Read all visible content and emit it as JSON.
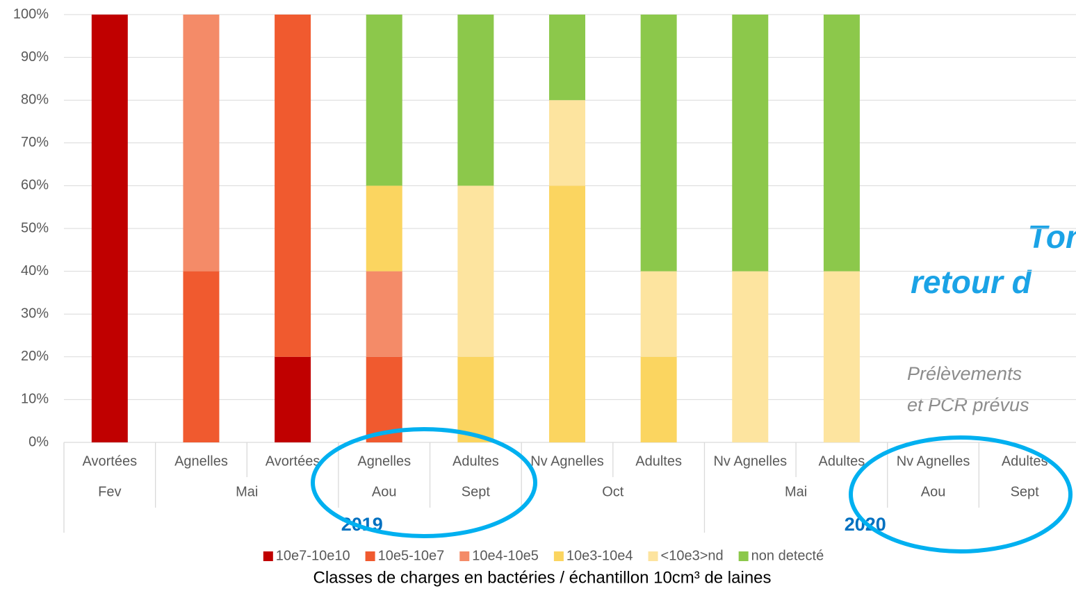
{
  "chart_data": {
    "type": "stacked_bar",
    "categories": [
      "Avortées",
      "Agnelles",
      "Avortées",
      "Agnelles",
      "Adultes",
      "Nv Agnelles",
      "Adultes",
      "Nv Agnelles",
      "Adultes",
      "Nv Agnelles",
      "Adultes"
    ],
    "category_groups": [
      [
        "Fev",
        "Mai",
        null,
        "Aou",
        "Sept",
        "Oct",
        null,
        "Mai",
        null,
        "Aou",
        "Sept"
      ],
      [
        "2019",
        null,
        null,
        null,
        null,
        null,
        null,
        "2020",
        null,
        null,
        null
      ]
    ],
    "series": [
      {
        "name": "10e7-10e10",
        "color": "#c00000",
        "values": [
          100,
          0,
          20,
          0,
          0,
          0,
          0,
          0,
          0,
          null,
          null
        ]
      },
      {
        "name": "10e5-10e7",
        "color": "#f05a2f",
        "values": [
          0,
          40,
          80,
          20,
          0,
          0,
          0,
          0,
          0,
          null,
          null
        ]
      },
      {
        "name": "10e4-10e5",
        "color": "#f48b68",
        "values": [
          0,
          60,
          0,
          20,
          0,
          0,
          0,
          0,
          0,
          null,
          null
        ]
      },
      {
        "name": "10e3-10e4",
        "color": "#fbd560",
        "values": [
          0,
          0,
          0,
          20,
          20,
          60,
          20,
          0,
          0,
          null,
          null
        ]
      },
      {
        "name": "<10e3>nd",
        "color": "#fde49f",
        "values": [
          0,
          0,
          0,
          0,
          40,
          20,
          20,
          40,
          40,
          null,
          null
        ]
      },
      {
        "name": "non detecté",
        "color": "#8cc84b",
        "values": [
          0,
          0,
          0,
          40,
          40,
          20,
          60,
          60,
          60,
          null,
          null
        ]
      }
    ],
    "xlabel": "Classes de charges en bactéries / échantillon 10cm³ de laines",
    "ylim": [
      0,
      100
    ],
    "yticks": [
      {
        "value": 0,
        "label": "0%"
      },
      {
        "value": 10,
        "label": "10%"
      },
      {
        "value": 20,
        "label": "20%"
      },
      {
        "value": 30,
        "label": "30%"
      },
      {
        "value": 40,
        "label": "40%"
      },
      {
        "value": 50,
        "label": "50%"
      },
      {
        "value": 60,
        "label": "60%"
      },
      {
        "value": 70,
        "label": "70%"
      },
      {
        "value": 80,
        "label": "80%"
      },
      {
        "value": 90,
        "label": "90%"
      },
      {
        "value": 100,
        "label": "100%"
      }
    ],
    "grid": true,
    "legend": "bottom",
    "annotations": [
      "Tonte",
      "retour d",
      "Prélèvements",
      "et PCR prévus"
    ]
  }
}
